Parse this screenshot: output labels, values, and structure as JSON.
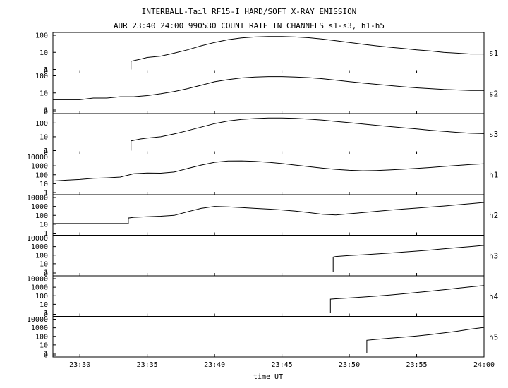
{
  "title_line1": "INTERBALL-Tail RF15-I HARD/SOFT X-RAY EMISSION",
  "title_line2": "AUR 23:40 24:00 990530  COUNT RATE IN CHANNELS s1-s3, h1-h5",
  "chart_data": {
    "type": "line",
    "xlabel": "time UT",
    "x_unit": "minutes after 23:28 UT",
    "x_ticks": [
      {
        "x": 2,
        "label": "23:30"
      },
      {
        "x": 7,
        "label": "23:35"
      },
      {
        "x": 12,
        "label": "23:40"
      },
      {
        "x": 17,
        "label": "23:45"
      },
      {
        "x": 22,
        "label": "23:50"
      },
      {
        "x": 27,
        "label": "23:55"
      },
      {
        "x": 32,
        "label": "24:00"
      }
    ],
    "xlim": [
      0,
      32
    ],
    "y_scale": "log",
    "series": [
      {
        "name": "s1",
        "y_ticks": [
          "100",
          "10",
          "1",
          "0"
        ],
        "ymax": 100,
        "points": [
          [
            5.8,
            0
          ],
          [
            5.8,
            3
          ],
          [
            6.5,
            4
          ],
          [
            7,
            5
          ],
          [
            8,
            6
          ],
          [
            9,
            9
          ],
          [
            10,
            14
          ],
          [
            11,
            24
          ],
          [
            12,
            38
          ],
          [
            13,
            55
          ],
          [
            14,
            70
          ],
          [
            15,
            80
          ],
          [
            16,
            85
          ],
          [
            17,
            85
          ],
          [
            18,
            80
          ],
          [
            19,
            72
          ],
          [
            20,
            60
          ],
          [
            21,
            48
          ],
          [
            22,
            38
          ],
          [
            23,
            30
          ],
          [
            24,
            24
          ],
          [
            25,
            20
          ],
          [
            26,
            17
          ],
          [
            27,
            14
          ],
          [
            28,
            12
          ],
          [
            29,
            10
          ],
          [
            30,
            9
          ],
          [
            31,
            8
          ],
          [
            32,
            8
          ]
        ]
      },
      {
        "name": "s2",
        "y_ticks": [
          "100",
          "10",
          "1",
          "0"
        ],
        "ymax": 100,
        "points": [
          [
            0,
            4
          ],
          [
            1,
            4
          ],
          [
            2,
            4
          ],
          [
            3,
            5
          ],
          [
            4,
            5
          ],
          [
            5,
            6
          ],
          [
            6,
            6
          ],
          [
            7,
            7
          ],
          [
            8,
            9
          ],
          [
            9,
            12
          ],
          [
            10,
            18
          ],
          [
            11,
            28
          ],
          [
            12,
            45
          ],
          [
            13,
            60
          ],
          [
            14,
            75
          ],
          [
            15,
            85
          ],
          [
            16,
            90
          ],
          [
            17,
            90
          ],
          [
            18,
            85
          ],
          [
            19,
            78
          ],
          [
            20,
            68
          ],
          [
            21,
            56
          ],
          [
            22,
            46
          ],
          [
            23,
            38
          ],
          [
            24,
            32
          ],
          [
            25,
            27
          ],
          [
            26,
            23
          ],
          [
            27,
            20
          ],
          [
            28,
            18
          ],
          [
            29,
            16
          ],
          [
            30,
            15
          ],
          [
            31,
            14
          ],
          [
            32,
            14
          ]
        ]
      },
      {
        "name": "s3",
        "y_ticks": [
          "100",
          "10",
          "1",
          "0"
        ],
        "ymax": 300,
        "points": [
          [
            5.8,
            0
          ],
          [
            5.8,
            5
          ],
          [
            6.5,
            7
          ],
          [
            7,
            8
          ],
          [
            8,
            10
          ],
          [
            9,
            16
          ],
          [
            10,
            28
          ],
          [
            11,
            50
          ],
          [
            12,
            90
          ],
          [
            13,
            140
          ],
          [
            14,
            180
          ],
          [
            15,
            210
          ],
          [
            16,
            230
          ],
          [
            17,
            230
          ],
          [
            18,
            215
          ],
          [
            19,
            190
          ],
          [
            20,
            160
          ],
          [
            21,
            130
          ],
          [
            22,
            105
          ],
          [
            23,
            85
          ],
          [
            24,
            68
          ],
          [
            25,
            55
          ],
          [
            26,
            45
          ],
          [
            27,
            37
          ],
          [
            28,
            30
          ],
          [
            29,
            25
          ],
          [
            30,
            21
          ],
          [
            31,
            18
          ],
          [
            32,
            17
          ]
        ]
      },
      {
        "name": "h1",
        "y_ticks": [
          "10000",
          "1000",
          "100",
          "10",
          "1"
        ],
        "ymax": 10000,
        "points": [
          [
            0,
            20
          ],
          [
            1,
            25
          ],
          [
            2,
            30
          ],
          [
            3,
            40
          ],
          [
            4,
            45
          ],
          [
            5,
            55
          ],
          [
            6,
            130
          ],
          [
            7,
            160
          ],
          [
            8,
            150
          ],
          [
            9,
            200
          ],
          [
            10,
            500
          ],
          [
            11,
            1200
          ],
          [
            12,
            2500
          ],
          [
            13,
            3500
          ],
          [
            14,
            3600
          ],
          [
            15,
            3200
          ],
          [
            16,
            2500
          ],
          [
            17,
            1800
          ],
          [
            18,
            1200
          ],
          [
            19,
            800
          ],
          [
            20,
            550
          ],
          [
            21,
            400
          ],
          [
            22,
            320
          ],
          [
            23,
            280
          ],
          [
            24,
            300
          ],
          [
            25,
            350
          ],
          [
            26,
            420
          ],
          [
            27,
            520
          ],
          [
            28,
            650
          ],
          [
            29,
            850
          ],
          [
            30,
            1100
          ],
          [
            31,
            1400
          ],
          [
            32,
            1700
          ]
        ]
      },
      {
        "name": "h2",
        "y_ticks": [
          "10000",
          "1000",
          "100",
          "10",
          "1"
        ],
        "ymax": 10000,
        "points": [
          [
            0,
            12
          ],
          [
            1,
            12
          ],
          [
            2,
            12
          ],
          [
            3,
            12
          ],
          [
            4,
            12
          ],
          [
            5,
            12
          ],
          [
            5.6,
            12
          ],
          [
            5.6,
            50
          ],
          [
            6,
            60
          ],
          [
            7,
            70
          ],
          [
            8,
            80
          ],
          [
            9,
            100
          ],
          [
            10,
            250
          ],
          [
            11,
            600
          ],
          [
            12,
            1000
          ],
          [
            13,
            900
          ],
          [
            14,
            750
          ],
          [
            15,
            600
          ],
          [
            16,
            500
          ],
          [
            17,
            400
          ],
          [
            18,
            300
          ],
          [
            19,
            200
          ],
          [
            20,
            130
          ],
          [
            21,
            110
          ],
          [
            22,
            150
          ],
          [
            23,
            200
          ],
          [
            24,
            280
          ],
          [
            25,
            380
          ],
          [
            26,
            500
          ],
          [
            27,
            650
          ],
          [
            28,
            850
          ],
          [
            29,
            1100
          ],
          [
            30,
            1500
          ],
          [
            31,
            2000
          ],
          [
            32,
            2800
          ]
        ]
      },
      {
        "name": "h3",
        "y_ticks": [
          "10000",
          "1000",
          "100",
          "10",
          "1",
          "0"
        ],
        "ymax": 10000,
        "points": [
          [
            20.8,
            0
          ],
          [
            20.8,
            60
          ],
          [
            21,
            70
          ],
          [
            22,
            90
          ],
          [
            23,
            110
          ],
          [
            24,
            140
          ],
          [
            25,
            180
          ],
          [
            26,
            230
          ],
          [
            27,
            300
          ],
          [
            28,
            400
          ],
          [
            29,
            550
          ],
          [
            30,
            750
          ],
          [
            31,
            1000
          ],
          [
            32,
            1400
          ]
        ]
      },
      {
        "name": "h4",
        "y_ticks": [
          "10000",
          "1000",
          "100",
          "10",
          "1",
          "0"
        ],
        "ymax": 10000,
        "points": [
          [
            20.6,
            0
          ],
          [
            20.6,
            40
          ],
          [
            21,
            45
          ],
          [
            22,
            55
          ],
          [
            23,
            70
          ],
          [
            24,
            90
          ],
          [
            25,
            120
          ],
          [
            26,
            170
          ],
          [
            27,
            240
          ],
          [
            28,
            350
          ],
          [
            29,
            500
          ],
          [
            30,
            750
          ],
          [
            31,
            1100
          ],
          [
            32,
            1600
          ]
        ]
      },
      {
        "name": "h5",
        "y_ticks": [
          "10000",
          "1000",
          "100",
          "10",
          "1",
          "0"
        ],
        "ymax": 10000,
        "points": [
          [
            23.3,
            0
          ],
          [
            23.3,
            35
          ],
          [
            24,
            45
          ],
          [
            25,
            60
          ],
          [
            26,
            80
          ],
          [
            27,
            110
          ],
          [
            28,
            160
          ],
          [
            29,
            250
          ],
          [
            30,
            400
          ],
          [
            31,
            700
          ],
          [
            32,
            1100
          ]
        ]
      }
    ]
  }
}
